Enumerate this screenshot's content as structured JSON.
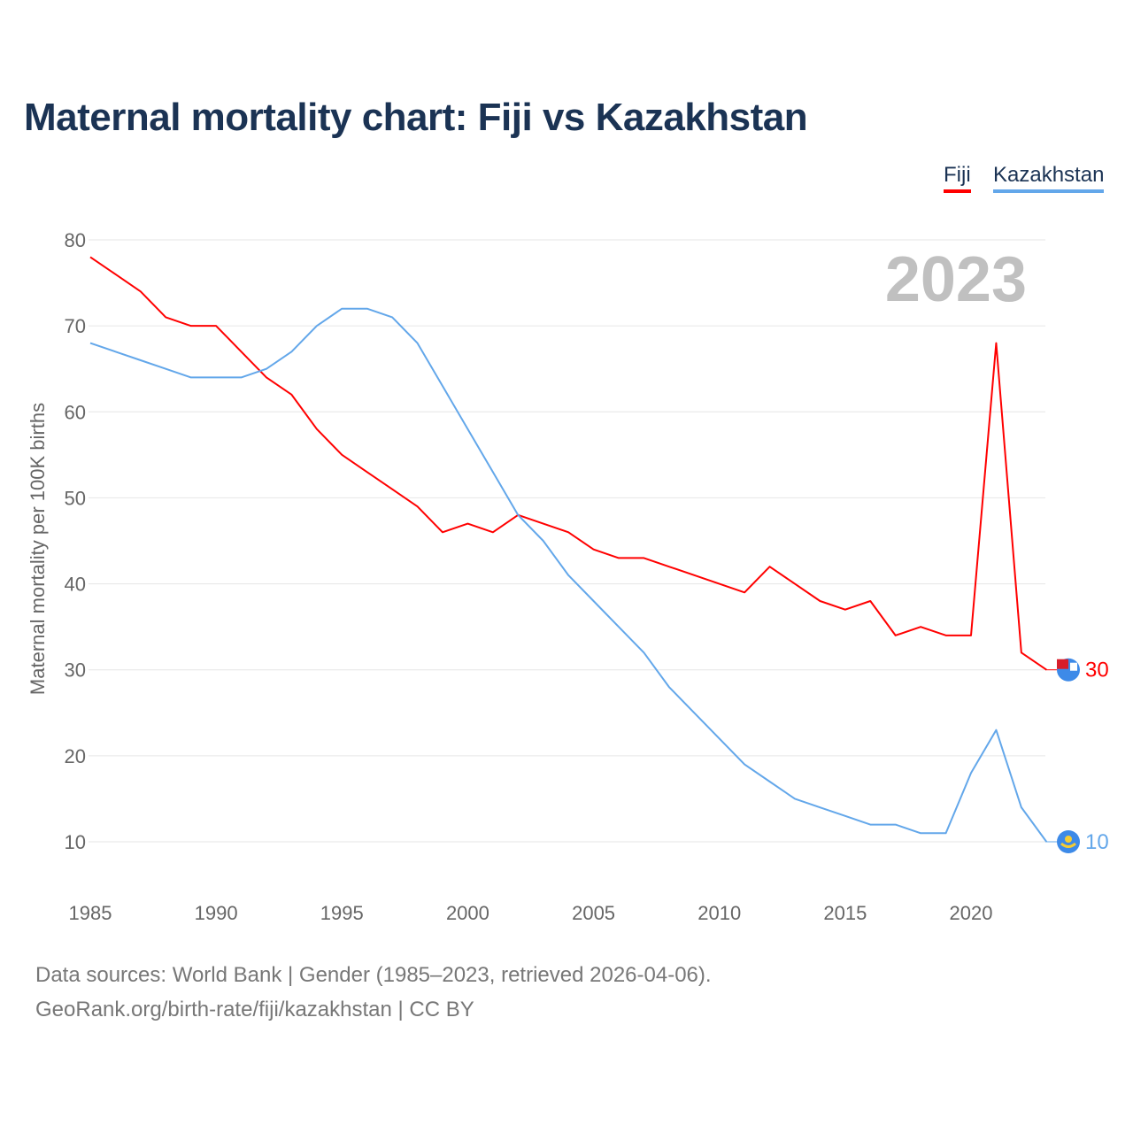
{
  "chart_data": {
    "type": "line",
    "title": "Maternal mortality chart: Fiji vs Kazakhstan",
    "ylabel": "Maternal mortality per 100K births",
    "xlabel": "",
    "year_label": "2023",
    "ylim": [
      5,
      80
    ],
    "yticks": [
      10,
      20,
      30,
      40,
      50,
      60,
      70,
      80
    ],
    "xticks": [
      1985,
      1990,
      1995,
      2000,
      2005,
      2010,
      2015,
      2020
    ],
    "grid": true,
    "legend_position": "top-right",
    "x": [
      1985,
      1986,
      1987,
      1988,
      1989,
      1990,
      1991,
      1992,
      1993,
      1994,
      1995,
      1996,
      1997,
      1998,
      1999,
      2000,
      2001,
      2002,
      2003,
      2004,
      2005,
      2006,
      2007,
      2008,
      2009,
      2010,
      2011,
      2012,
      2013,
      2014,
      2015,
      2016,
      2017,
      2018,
      2019,
      2020,
      2021,
      2022,
      2023
    ],
    "series": [
      {
        "name": "Fiji",
        "color": "#ff0000",
        "end_label": "30",
        "flag": "fiji-flag",
        "values": [
          78,
          76,
          74,
          71,
          70,
          70,
          67,
          64,
          62,
          58,
          55,
          53,
          51,
          49,
          46,
          47,
          46,
          48,
          47,
          46,
          44,
          43,
          43,
          42,
          41,
          40,
          39,
          42,
          40,
          38,
          37,
          38,
          34,
          35,
          34,
          34,
          68,
          32,
          30
        ]
      },
      {
        "name": "Kazakhstan",
        "color": "#63a7ea",
        "end_label": "10",
        "flag": "kazakhstan-flag",
        "values": [
          68,
          67,
          66,
          65,
          64,
          64,
          64,
          65,
          67,
          70,
          72,
          72,
          71,
          68,
          63,
          58,
          53,
          48,
          45,
          41,
          38,
          35,
          32,
          28,
          25,
          22,
          19,
          17,
          15,
          14,
          13,
          12,
          12,
          11,
          11,
          18,
          23,
          14,
          10
        ]
      }
    ]
  },
  "footer": {
    "line1": "Data sources: World Bank | Gender (1985–2023, retrieved 2026-04-06).",
    "line2": "GeoRank.org/birth-rate/fiji/kazakhstan | CC BY"
  }
}
